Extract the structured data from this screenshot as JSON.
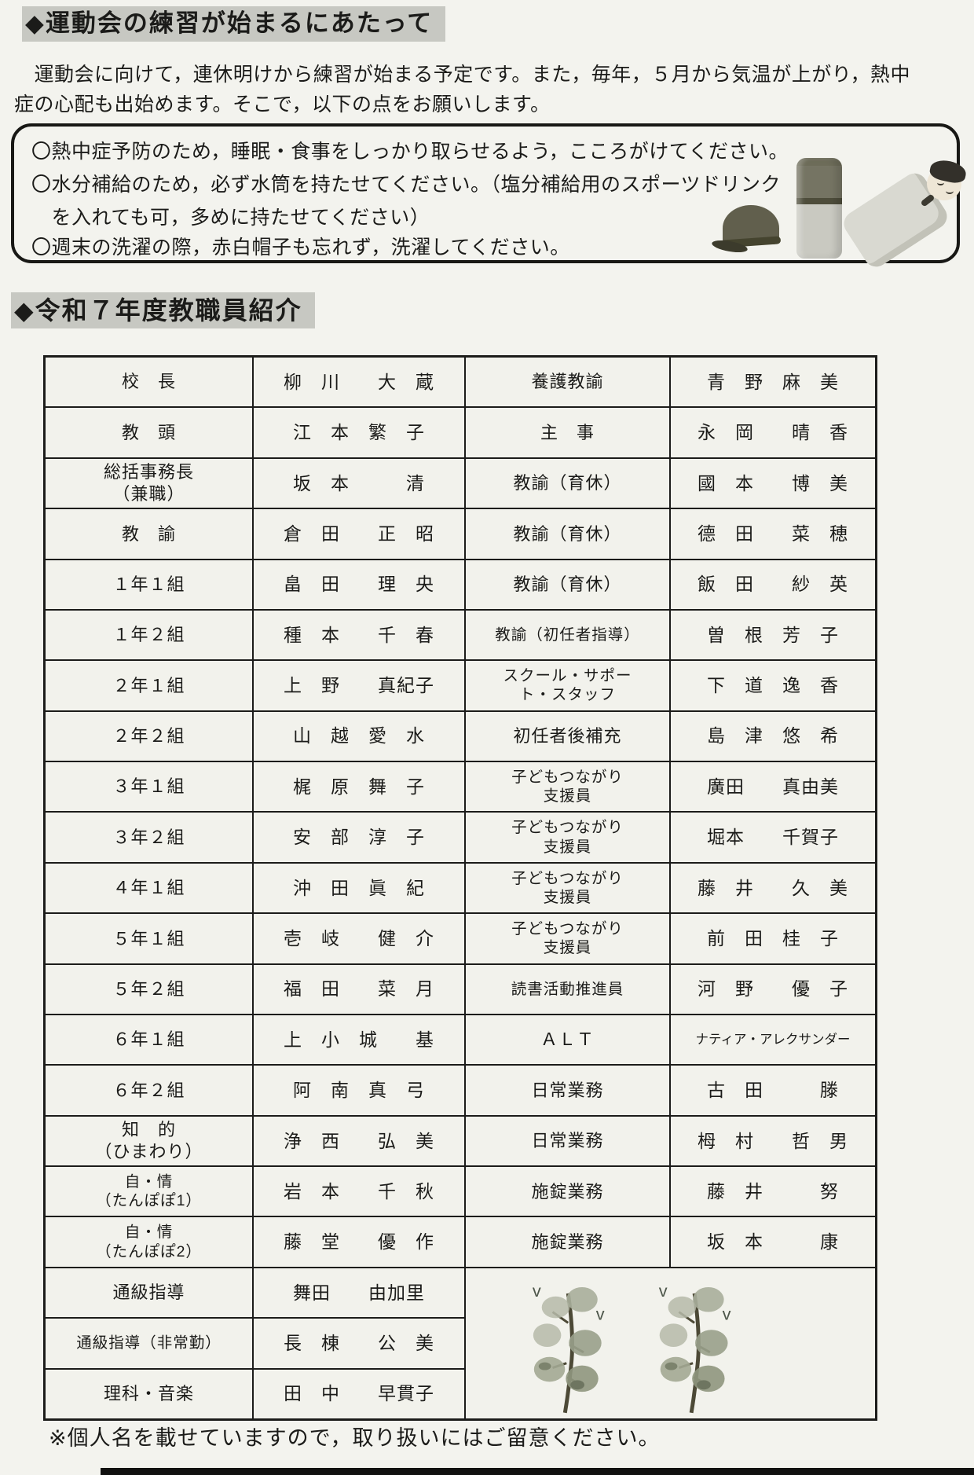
{
  "page": {
    "paper_color": "#f3f3ee",
    "ink_color": "#1b1b19",
    "heading_highlight_color": "#c7c8c2",
    "table_line_color": "#1c1c1a"
  },
  "section_practice": {
    "heading": "◆運動会の練習が始まるにあたって",
    "paragraph_lines": [
      "　運動会に向けて，連休明けから練習が始まる予定です。また，毎年，５月から気温が上がり，熱中",
      "症の心配も出始めます。そこで，以下の点をお願いします。"
    ],
    "notice_box": {
      "lines": [
        "〇熱中症予防のため，睡眠・食事をしっかり取らせるよう，こころがけてください。",
        "〇水分補給のため，必ず水筒を持たせてください。（塩分補給用のスポーツドリンク",
        "　を入れても可，多めに持たせてください）",
        "〇週末の洗濯の際，赤白帽子も忘れず，洗濯してください。"
      ],
      "illustrations": [
        "red-white-cap-icon",
        "water-bottle-icon",
        "sleeping-child-icon"
      ]
    }
  },
  "section_staff": {
    "heading": "◆令和７年度教職員紹介",
    "table": {
      "rows": [
        [
          "校　長",
          "柳　川　　大　蔵",
          "養護教諭",
          "青　野　麻　美"
        ],
        [
          "教　頭",
          "江　本　繁　子",
          "主　事",
          "永　岡　　晴　香"
        ],
        [
          "総括事務長\n（兼職）",
          "坂　本　　　清",
          "教諭（育休）",
          "國　本　　博　美"
        ],
        [
          "教　諭",
          "倉　田　　正　昭",
          "教諭（育休）",
          "德　田　　菜　穂"
        ],
        [
          "１年１組",
          "畠　田　　理　央",
          "教諭（育休）",
          "飯　田　　紗　英"
        ],
        [
          "１年２組",
          "種　本　　千　春",
          "教諭（初任者指導）",
          "曽　根　芳　子"
        ],
        [
          "２年１組",
          "上　野　　真紀子",
          "スクール・サポー\nト・スタッフ",
          "下　道　逸　香"
        ],
        [
          "２年２組",
          "山　越　愛　水",
          "初任者後補充",
          "島　津　悠　希"
        ],
        [
          "３年１組",
          "梶　原　舞　子",
          "子どもつながり\n支援員",
          "廣田　　真由美"
        ],
        [
          "３年２組",
          "安　部　淳　子",
          "子どもつながり\n支援員",
          "堀本　　千賀子"
        ],
        [
          "４年１組",
          "沖　田　眞　紀",
          "子どもつながり\n支援員",
          "藤　井　　久　美"
        ],
        [
          "５年１組",
          "壱　岐　　健　介",
          "子どもつながり\n支援員",
          "前　田　桂　子"
        ],
        [
          "５年２組",
          "福　田　　菜　月",
          "読書活動推進員",
          "河　野　　優　子"
        ],
        [
          "６年１組",
          "上　小　城　　基",
          "ＡＬＴ",
          "ナティア・アレクサンダー"
        ],
        [
          "６年２組",
          "阿　南　真　弓",
          "日常業務",
          "古　田　　　滕"
        ],
        [
          "知　的\n（ひまわり）",
          "浄　西　　弘　美",
          "日常業務",
          "栂　村　　哲　男"
        ],
        [
          "自・情\n（たんぽぽ1）",
          "岩　本　　千　秋",
          "施錠業務",
          "藤　井　　　努"
        ],
        [
          "自・情\n（たんぽぽ2）",
          "藤　堂　　優　作",
          "施錠業務",
          "坂　本　　　康"
        ],
        [
          "通級指導",
          "舞田　　由加里",
          null,
          null
        ],
        [
          "通級指導（非常勤）",
          "長　棟　　公　美",
          null,
          null
        ],
        [
          "理科・音楽",
          "田　中　　早貫子",
          null,
          null
        ]
      ],
      "decoration": "flower-sprigs"
    },
    "note": "※個人名を載せていますので，取り扱いにはご留意ください。"
  }
}
